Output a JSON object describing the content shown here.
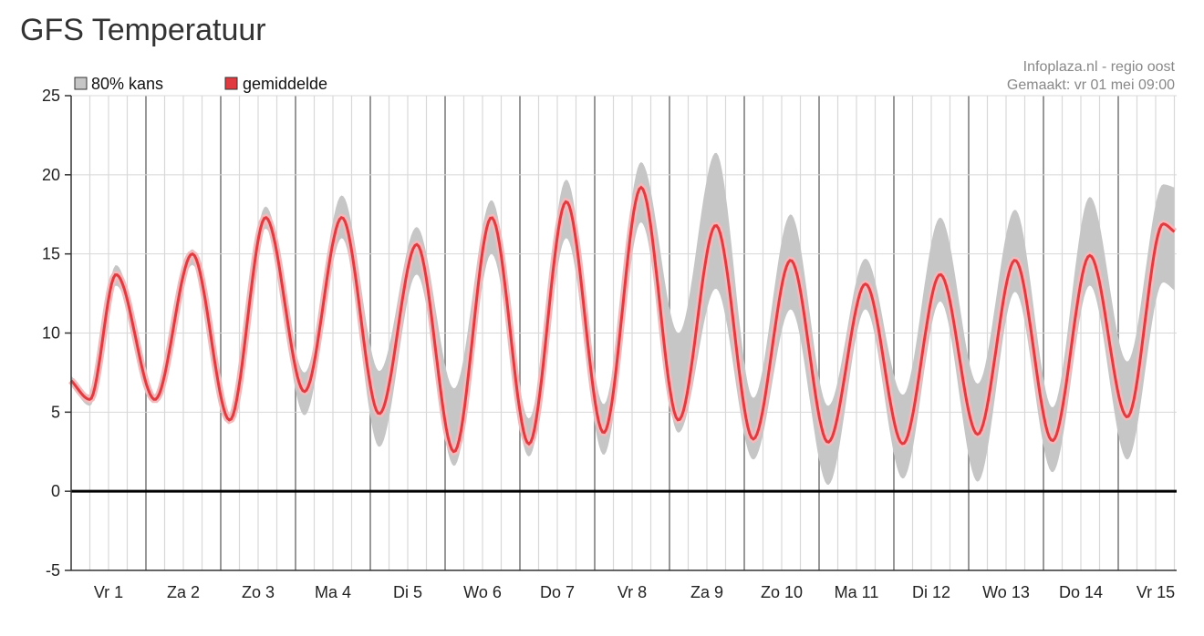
{
  "page": {
    "title": "GFS Temperatuur"
  },
  "credit": {
    "line1": "Infoplaza.nl - regio oost",
    "line2": "Gemaakt: vr 01 mei 09:00"
  },
  "colors": {
    "band": "#c6c6c6",
    "line": "#e03b40",
    "glow": "#f4b9bb",
    "zero": "#000000",
    "major_grid": "#777777",
    "minor_grid": "#d8d8d8"
  },
  "chart_data": {
    "type": "area",
    "title": "GFS Temperatuur",
    "ylim": [
      -5,
      25
    ],
    "y_ticks": [
      25,
      20,
      15,
      10,
      5,
      0,
      -5
    ],
    "day_labels": [
      "Vr 1",
      "Za 2",
      "Zo 3",
      "Ma 4",
      "Di 5",
      "Wo 6",
      "Do 7",
      "Vr 8",
      "Za 9",
      "Zo 10",
      "Ma 11",
      "Di 12",
      "Wo 13",
      "Do 14",
      "Vr 15"
    ],
    "legend": [
      {
        "label": "80% kans",
        "color": "#c6c6c6"
      },
      {
        "label": "gemiddelde",
        "color": "#e03b40"
      }
    ],
    "series": [
      {
        "name": "gemiddelde",
        "x": [
          0.0,
          0.25,
          0.6,
          1.12,
          1.62,
          2.12,
          2.6,
          3.12,
          3.62,
          4.12,
          4.62,
          5.12,
          5.62,
          6.12,
          6.62,
          7.12,
          7.62,
          8.12,
          8.62,
          9.12,
          9.62,
          10.12,
          10.62,
          11.12,
          11.62,
          12.12,
          12.62,
          13.12,
          13.62,
          14.12,
          14.6,
          14.75
        ],
        "y": [
          7.0,
          5.8,
          13.7,
          5.8,
          15.0,
          4.5,
          17.3,
          6.3,
          17.3,
          4.9,
          15.6,
          2.5,
          17.3,
          3.0,
          18.3,
          3.7,
          19.2,
          4.5,
          16.8,
          3.3,
          14.6,
          3.1,
          13.1,
          3.0,
          13.7,
          3.6,
          14.6,
          3.2,
          14.9,
          4.7,
          16.9,
          16.4
        ]
      },
      {
        "name": "80% kans",
        "x": [
          0.0,
          0.25,
          0.6,
          1.12,
          1.62,
          2.12,
          2.6,
          3.12,
          3.62,
          4.12,
          4.62,
          5.12,
          5.62,
          6.12,
          6.62,
          7.12,
          7.62,
          8.12,
          8.62,
          9.12,
          9.62,
          10.12,
          10.62,
          11.12,
          11.62,
          12.12,
          12.62,
          13.12,
          13.62,
          14.12,
          14.6,
          14.75
        ],
        "low": [
          6.7,
          5.4,
          13.0,
          5.6,
          14.3,
          4.3,
          16.6,
          4.8,
          16.0,
          2.8,
          13.7,
          1.6,
          15.0,
          2.2,
          16.0,
          2.3,
          17.0,
          3.7,
          12.8,
          2.0,
          11.5,
          0.4,
          11.5,
          0.8,
          12.0,
          0.6,
          12.6,
          1.2,
          13.0,
          2.0,
          13.2,
          12.7
        ],
        "high": [
          7.3,
          6.1,
          14.3,
          6.1,
          15.3,
          4.8,
          18.0,
          7.5,
          18.7,
          7.6,
          16.7,
          6.5,
          18.4,
          4.6,
          19.7,
          5.5,
          20.8,
          10.0,
          21.4,
          5.9,
          17.5,
          5.4,
          14.7,
          6.1,
          17.3,
          6.8,
          17.8,
          5.3,
          18.6,
          8.2,
          19.4,
          19.2
        ]
      }
    ]
  }
}
